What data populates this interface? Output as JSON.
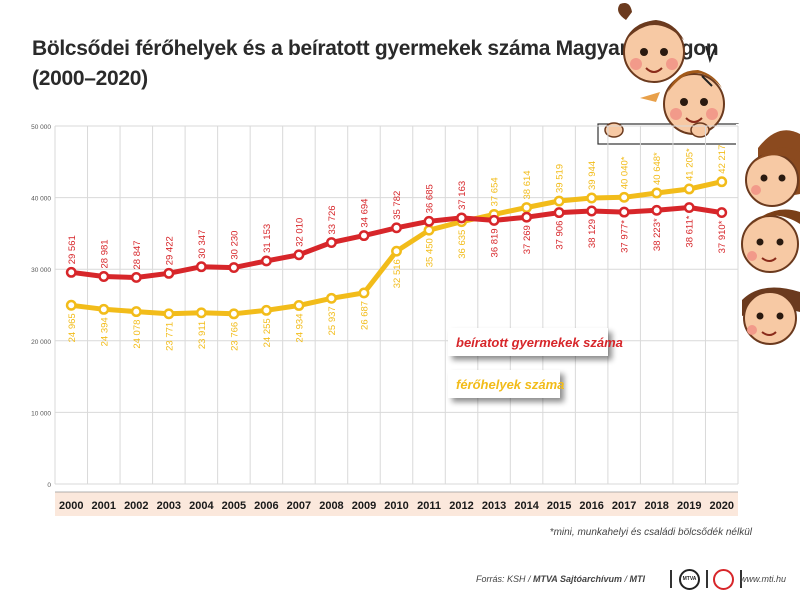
{
  "title_line1": "Bölcsődei férőhelyek és a beíratott gyermekek száma Magyarországon",
  "title_line2": "(2000–2020)",
  "footnote": "*mini, munkahelyi és családi bölcsődék nélkül",
  "source_prefix": "Forrás: KSH / ",
  "source_bold": "MTVA Sajtóarchívum",
  "source_sep": " / ",
  "source_mti": "MTI",
  "logo_text": "MTVA",
  "website": "www.mti.hu",
  "colors": {
    "enrolled": "#d7262a",
    "places": "#f2bc1a",
    "grid": "#d9d9d9",
    "xaxis_band": "#fbe8dc",
    "tick": "#555555"
  },
  "chart_data": {
    "type": "line",
    "title": "Bölcsődei férőhelyek és a beíratott gyermekek száma Magyarországon (2000–2020)",
    "categories": [
      "2000",
      "2001",
      "2002",
      "2003",
      "2004",
      "2005",
      "2006",
      "2007",
      "2008",
      "2009",
      "2010",
      "2011",
      "2012",
      "2013",
      "2014",
      "2015",
      "2016",
      "2017",
      "2018",
      "2019",
      "2020"
    ],
    "ylim": [
      0,
      50000
    ],
    "y_ticks": [
      0,
      10000,
      20000,
      30000,
      40000,
      50000
    ],
    "y_tick_labels": [
      "0",
      "10 000",
      "20 000",
      "30 000",
      "40 000",
      "50 000"
    ],
    "grid": true,
    "legend_position": "right-middle",
    "series": [
      {
        "name": "beíratott gyermekek száma",
        "color": "#d7262a",
        "values": [
          29561,
          28981,
          28847,
          29422,
          30347,
          30230,
          31153,
          32010,
          33726,
          34694,
          35782,
          36685,
          37163,
          36819,
          37269,
          37906,
          38129,
          37977,
          38223,
          38611,
          37910
        ],
        "labels": [
          "29 561",
          "28 981",
          "28 847",
          "29 422",
          "30 347",
          "30 230",
          "31 153",
          "32 010",
          "33 726",
          "34 694",
          "35 782",
          "36 685",
          "37 163",
          "36 819",
          "37 269",
          "37 906",
          "38 129",
          "37 977*",
          "38 223*",
          "38 611*",
          "37 910*"
        ]
      },
      {
        "name": "férőhelyek száma",
        "color": "#f2bc1a",
        "values": [
          24965,
          24394,
          24078,
          23771,
          23911,
          23766,
          24255,
          24934,
          25937,
          26687,
          32516,
          35450,
          36635,
          37654,
          38614,
          39519,
          39944,
          40040,
          40648,
          41205,
          42217
        ],
        "labels": [
          "24 965",
          "24 394",
          "24 078",
          "23 771",
          "23 911",
          "23 766",
          "24 255",
          "24 934",
          "25 937",
          "26 687",
          "32 516",
          "35 450",
          "36 635",
          "37 654",
          "38 614",
          "39 519",
          "39 944",
          "40 040*",
          "40 648*",
          "41 205*",
          "42 217"
        ]
      }
    ]
  }
}
